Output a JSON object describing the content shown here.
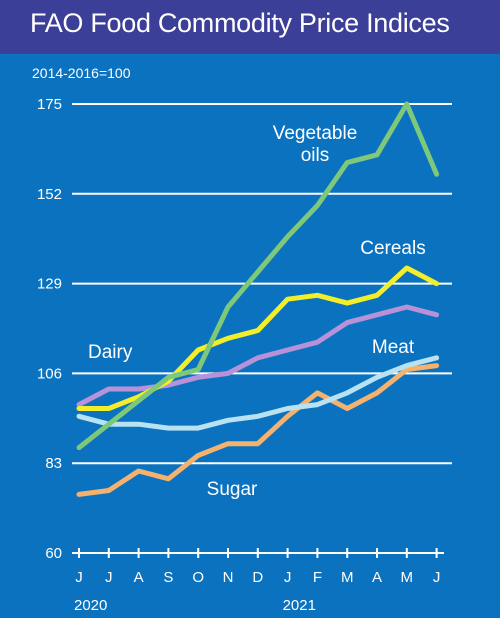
{
  "title": "FAO Food Commodity Price Indices",
  "subtitle": "2014-2016=100",
  "colors": {
    "background": "#0a72bf",
    "title_bar": "#3c3f98",
    "grid": "#ffffff"
  },
  "chart_data": {
    "type": "line",
    "title": "FAO Food Commodity Price Indices",
    "subtitle": "2014-2016=100",
    "ylim": [
      60,
      175
    ],
    "yticks": [
      60,
      83,
      106,
      129,
      152,
      175
    ],
    "grid": true,
    "categories": [
      "J",
      "J",
      "A",
      "S",
      "O",
      "N",
      "D",
      "J",
      "F",
      "M",
      "A",
      "M",
      "J"
    ],
    "year_labels": [
      {
        "label": "2020",
        "index": 0
      },
      {
        "label": "2021",
        "index": 7
      }
    ],
    "series": [
      {
        "name": "Vegetable oils",
        "label_lines": [
          "Vegetable",
          "oils"
        ],
        "color": "#7ec87a",
        "values": [
          87,
          93,
          99,
          105,
          107,
          123,
          132,
          141,
          149,
          160,
          162,
          175,
          157
        ]
      },
      {
        "name": "Cereals",
        "label_lines": [
          "Cereals"
        ],
        "color": "#f2ee2a",
        "values": [
          97,
          97,
          100,
          104,
          112,
          115,
          117,
          125,
          126,
          124,
          126,
          133,
          129
        ]
      },
      {
        "name": "Dairy",
        "label_lines": [
          "Dairy"
        ],
        "color": "#b892d9",
        "values": [
          98,
          102,
          102,
          103,
          105,
          106,
          110,
          112,
          114,
          119,
          121,
          123,
          121
        ]
      },
      {
        "name": "Meat",
        "label_lines": [
          "Meat"
        ],
        "color": "#b8e2f2",
        "values": [
          95,
          93,
          93,
          92,
          92,
          94,
          95,
          97,
          98,
          101,
          105,
          108,
          110
        ]
      },
      {
        "name": "Sugar",
        "label_lines": [
          "Sugar"
        ],
        "color": "#f5b26e",
        "values": [
          75,
          76,
          81,
          79,
          85,
          88,
          88,
          95,
          101,
          97,
          101,
          107,
          108
        ]
      }
    ]
  }
}
